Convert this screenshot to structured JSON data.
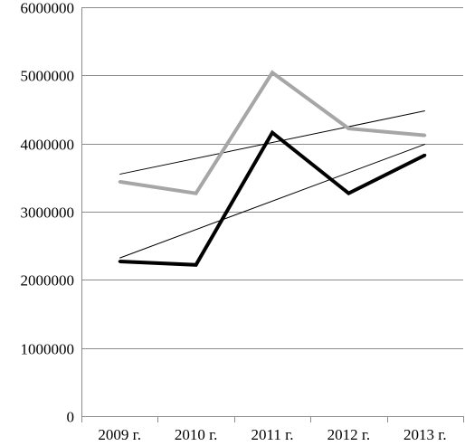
{
  "chart_data": {
    "type": "line",
    "title": "",
    "xlabel": "",
    "ylabel": "",
    "categories": [
      "2009 г.",
      "2010 г.",
      "2011 г.",
      "2012 г.",
      "2013 г."
    ],
    "ylim": [
      0,
      6000000
    ],
    "yticks": [
      0,
      1000000,
      2000000,
      3000000,
      4000000,
      5000000,
      6000000
    ],
    "y_tick_labels": [
      "0",
      "1000000",
      "2000000",
      "3000000",
      "4000000",
      "5000000",
      "6000000"
    ],
    "grid": "horizontal",
    "legend": "none",
    "series": [
      {
        "values": [
          3440000,
          3270000,
          5040000,
          4220000,
          4120000
        ],
        "color": "#a6a6a6",
        "style": "thick"
      },
      {
        "values": [
          2270000,
          2220000,
          4160000,
          3270000,
          3830000
        ],
        "color": "#000000",
        "style": "thick"
      }
    ],
    "trendlines": [
      {
        "start": 3550000,
        "end": 4480000,
        "color": "#000000"
      },
      {
        "start": 2320000,
        "end": 3990000,
        "color": "#000000"
      }
    ]
  }
}
